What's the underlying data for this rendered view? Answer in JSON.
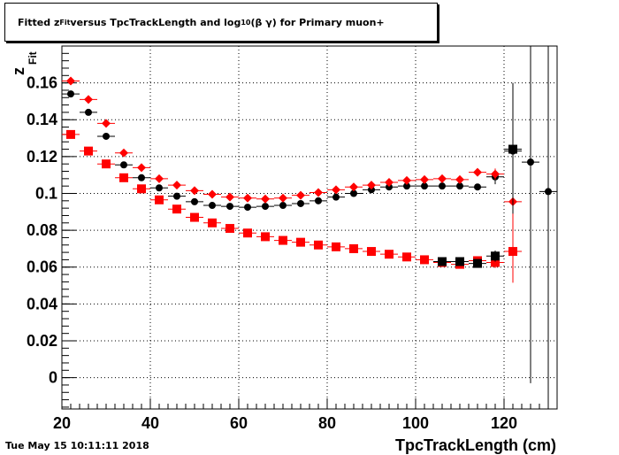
{
  "header": {
    "title_prefix": "Fitted  z",
    "title_sub1": "Fit",
    "title_mid": " versus TpcTrackLength and log",
    "title_sub2": "10",
    "title_suffix": " (β γ) for Primary muon+"
  },
  "footer": {
    "date": "Tue May 15 10:11:11 2018"
  },
  "chart_data": {
    "type": "scatter",
    "title": "Fitted z_Fit versus TpcTrackLength and log10 (β γ) for Primary muon+",
    "xlabel": "TpcTrackLength (cm)",
    "ylabel": "z",
    "ylabel_sub": "Fit",
    "xlim": [
      20,
      132
    ],
    "ylim": [
      -0.017,
      0.18
    ],
    "grid": true,
    "x_ticks": [
      20,
      40,
      60,
      80,
      100,
      120
    ],
    "x_tick_labels": [
      "20",
      "40",
      "60",
      "80",
      "100",
      "120"
    ],
    "y_ticks": [
      0,
      0.02,
      0.04,
      0.06,
      0.08,
      0.1,
      0.12,
      0.14,
      0.16
    ],
    "y_tick_labels": [
      "0",
      "0.02",
      "0.04",
      "0.06",
      "0.08",
      "0.1",
      "0.12",
      "0.14",
      "0.16"
    ],
    "series": [
      {
        "marker": "circle",
        "color": "#000000",
        "points": [
          [
            22,
            0.154,
            0
          ],
          [
            26,
            0.144,
            0
          ],
          [
            30,
            0.131,
            0
          ],
          [
            34,
            0.1155,
            0
          ],
          [
            38,
            0.1085,
            0
          ],
          [
            42,
            0.103,
            0
          ],
          [
            46,
            0.0985,
            0
          ],
          [
            50,
            0.0955,
            0
          ],
          [
            54,
            0.0935,
            0
          ],
          [
            58,
            0.093,
            0
          ],
          [
            62,
            0.0925,
            0
          ],
          [
            66,
            0.093,
            0
          ],
          [
            70,
            0.0935,
            0
          ],
          [
            74,
            0.0945,
            0
          ],
          [
            78,
            0.096,
            0
          ],
          [
            82,
            0.098,
            0
          ],
          [
            86,
            0.1,
            0
          ],
          [
            90,
            0.102,
            0
          ],
          [
            94,
            0.1035,
            0
          ],
          [
            98,
            0.104,
            0
          ],
          [
            102,
            0.104,
            0
          ],
          [
            106,
            0.104,
            0
          ],
          [
            110,
            0.104,
            0
          ],
          [
            114,
            0.1035,
            0
          ],
          [
            118,
            0.109,
            0.004
          ],
          [
            122,
            0.123,
            0.037
          ],
          [
            126,
            0.117,
            0.12
          ],
          [
            130,
            0.101,
            0.12
          ]
        ]
      },
      {
        "marker": "diamond",
        "color": "#ff0000",
        "points": [
          [
            22,
            0.161,
            0
          ],
          [
            26,
            0.151,
            0
          ],
          [
            30,
            0.138,
            0
          ],
          [
            34,
            0.122,
            0
          ],
          [
            38,
            0.114,
            0
          ],
          [
            42,
            0.108,
            0
          ],
          [
            46,
            0.1045,
            0
          ],
          [
            50,
            0.1015,
            0
          ],
          [
            54,
            0.0995,
            0
          ],
          [
            58,
            0.098,
            0
          ],
          [
            62,
            0.0975,
            0
          ],
          [
            66,
            0.097,
            0
          ],
          [
            70,
            0.0975,
            0
          ],
          [
            74,
            0.099,
            0
          ],
          [
            78,
            0.1005,
            0
          ],
          [
            82,
            0.102,
            0
          ],
          [
            86,
            0.1035,
            0
          ],
          [
            90,
            0.1045,
            0
          ],
          [
            94,
            0.106,
            0
          ],
          [
            98,
            0.107,
            0
          ],
          [
            102,
            0.1075,
            0
          ],
          [
            106,
            0.108,
            0
          ],
          [
            110,
            0.1075,
            0
          ],
          [
            114,
            0.1115,
            0
          ],
          [
            118,
            0.1105,
            0.003
          ],
          [
            122,
            0.0955,
            0.02
          ]
        ]
      },
      {
        "marker": "square",
        "color": "#ff0000",
        "points": [
          [
            22,
            0.132,
            0
          ],
          [
            26,
            0.123,
            0
          ],
          [
            30,
            0.116,
            0
          ],
          [
            34,
            0.1085,
            0
          ],
          [
            38,
            0.1025,
            0
          ],
          [
            42,
            0.0965,
            0
          ],
          [
            46,
            0.0915,
            0
          ],
          [
            50,
            0.087,
            0
          ],
          [
            54,
            0.084,
            0
          ],
          [
            58,
            0.081,
            0
          ],
          [
            62,
            0.0785,
            0
          ],
          [
            66,
            0.0765,
            0
          ],
          [
            70,
            0.0745,
            0
          ],
          [
            74,
            0.0735,
            0
          ],
          [
            78,
            0.072,
            0
          ],
          [
            82,
            0.071,
            0
          ],
          [
            86,
            0.07,
            0
          ],
          [
            90,
            0.0685,
            0
          ],
          [
            94,
            0.067,
            0
          ],
          [
            98,
            0.0655,
            0
          ],
          [
            102,
            0.064,
            0
          ],
          [
            106,
            0.0625,
            0
          ],
          [
            110,
            0.0615,
            0
          ],
          [
            114,
            0.0635,
            0
          ],
          [
            118,
            0.0625,
            0.003
          ],
          [
            122,
            0.0685,
            0.017
          ]
        ]
      },
      {
        "marker": "square",
        "color": "#000000",
        "points": [
          [
            106,
            0.063,
            0
          ],
          [
            110,
            0.063,
            0
          ],
          [
            114,
            0.062,
            0
          ],
          [
            118,
            0.066,
            0.003
          ],
          [
            122,
            0.124,
            0.035
          ]
        ]
      }
    ]
  }
}
